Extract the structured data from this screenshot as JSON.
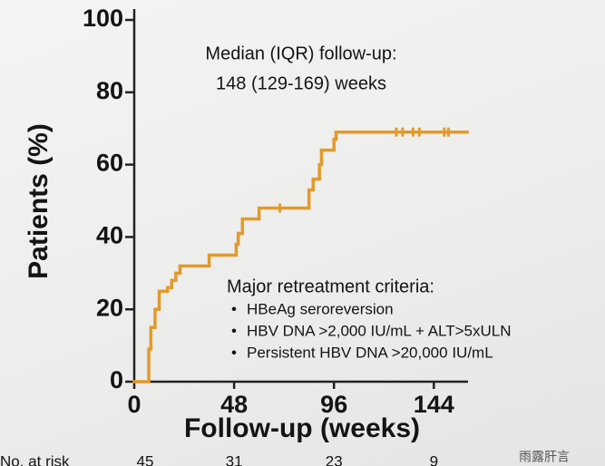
{
  "chart_data": {
    "type": "line",
    "step": "post",
    "color": "#e19a2c",
    "x": [
      0,
      7,
      8,
      10,
      12,
      16,
      18,
      20,
      22,
      36,
      49,
      50,
      52,
      60,
      84,
      86,
      89,
      90,
      96,
      97,
      160
    ],
    "values": [
      0,
      9,
      15,
      20,
      25,
      26,
      28,
      30,
      32,
      35,
      38,
      41,
      45,
      48,
      53,
      56,
      60,
      64,
      67,
      69,
      69
    ],
    "censored": {
      "x": [
        70,
        126,
        129,
        134,
        137,
        149,
        151
      ],
      "values": [
        48,
        69,
        69,
        69,
        69,
        69,
        69
      ]
    },
    "xlim": [
      0,
      160
    ],
    "xticks": [
      0,
      48,
      96,
      144
    ],
    "ylim": [
      0,
      100
    ],
    "yticks": [
      0,
      20,
      40,
      60,
      80,
      100
    ],
    "x_label": "Follow-up (weeks)",
    "y_label": "Patients (%)",
    "annotation_1": [
      "Median (IQR) follow-up:",
      "148 (129-169) weeks"
    ],
    "annotation_2": {
      "title": "Major retreatment criteria:",
      "items": [
        "HBeAg seroreversion",
        "HBV DNA >2,000 IU/mL + ALT>5xULN",
        "Persistent HBV DNA >20,000 IU/mL"
      ]
    },
    "at_risk": {
      "label": "No. at risk",
      "x": [
        0,
        48,
        96,
        144
      ],
      "values": [
        45,
        31,
        23,
        9
      ]
    },
    "watermark": "雨露肝言"
  }
}
